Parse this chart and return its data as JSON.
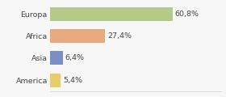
{
  "categories": [
    "Europa",
    "Africa",
    "Asia",
    "America"
  ],
  "values": [
    60.8,
    27.4,
    6.4,
    5.4
  ],
  "labels": [
    "60,8%",
    "27,4%",
    "6,4%",
    "5,4%"
  ],
  "bar_colors": [
    "#b5c98a",
    "#e8a97e",
    "#7b8fc4",
    "#e8ce6a"
  ],
  "background_color": "#f7f7f7",
  "xlim": [
    0,
    85
  ],
  "bar_height": 0.62,
  "label_fontsize": 6.8,
  "tick_fontsize": 6.8
}
